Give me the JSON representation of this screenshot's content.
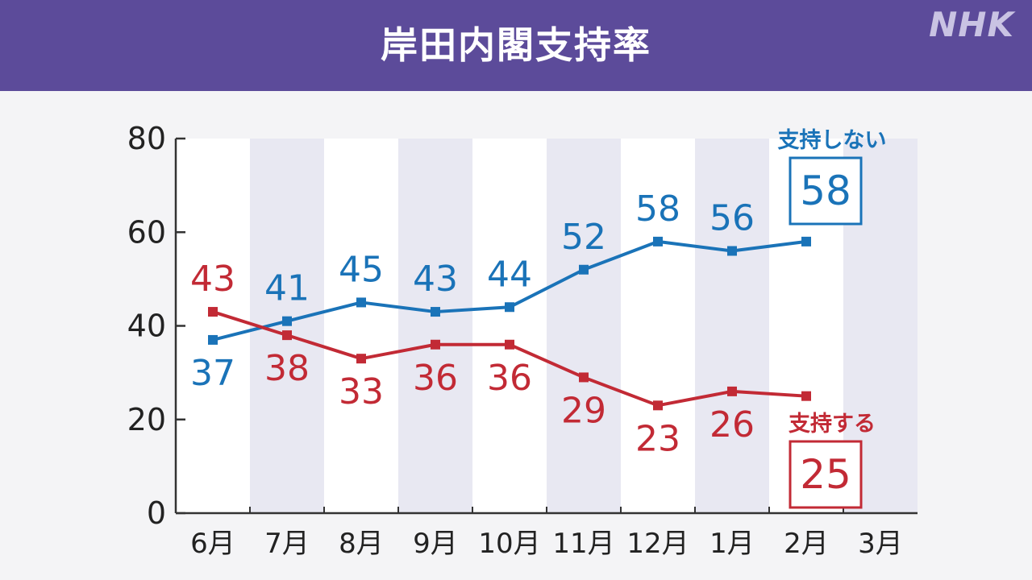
{
  "header": {
    "title": "岸田内閣支持率",
    "logo": "NHK"
  },
  "colors": {
    "header_bg": "#5c4b9a",
    "not_support": "#1a73b8",
    "support": "#c22a35",
    "band": "#e8e8f2"
  },
  "chart_data": {
    "type": "line",
    "categories": [
      "6月",
      "7月",
      "8月",
      "9月",
      "10月",
      "11月",
      "12月",
      "1月",
      "2月",
      "3月"
    ],
    "ylim": [
      0,
      80
    ],
    "yticks": [
      0,
      20,
      40,
      60,
      80
    ],
    "grid": false,
    "series": [
      {
        "name": "支持しない",
        "color": "#1a73b8",
        "values": [
          37,
          41,
          45,
          43,
          44,
          52,
          58,
          56,
          58,
          null
        ],
        "labels": [
          "37",
          "41",
          "45",
          "43",
          "44",
          "52",
          "58",
          "56",
          "58",
          null
        ],
        "latest": "58"
      },
      {
        "name": "支持する",
        "color": "#c22a35",
        "values": [
          43,
          38,
          33,
          36,
          36,
          29,
          23,
          26,
          25,
          null
        ],
        "labels": [
          "43",
          "38",
          "33",
          "36",
          "36",
          "29",
          "23",
          "26",
          "25",
          null
        ],
        "latest": "25"
      }
    ]
  }
}
